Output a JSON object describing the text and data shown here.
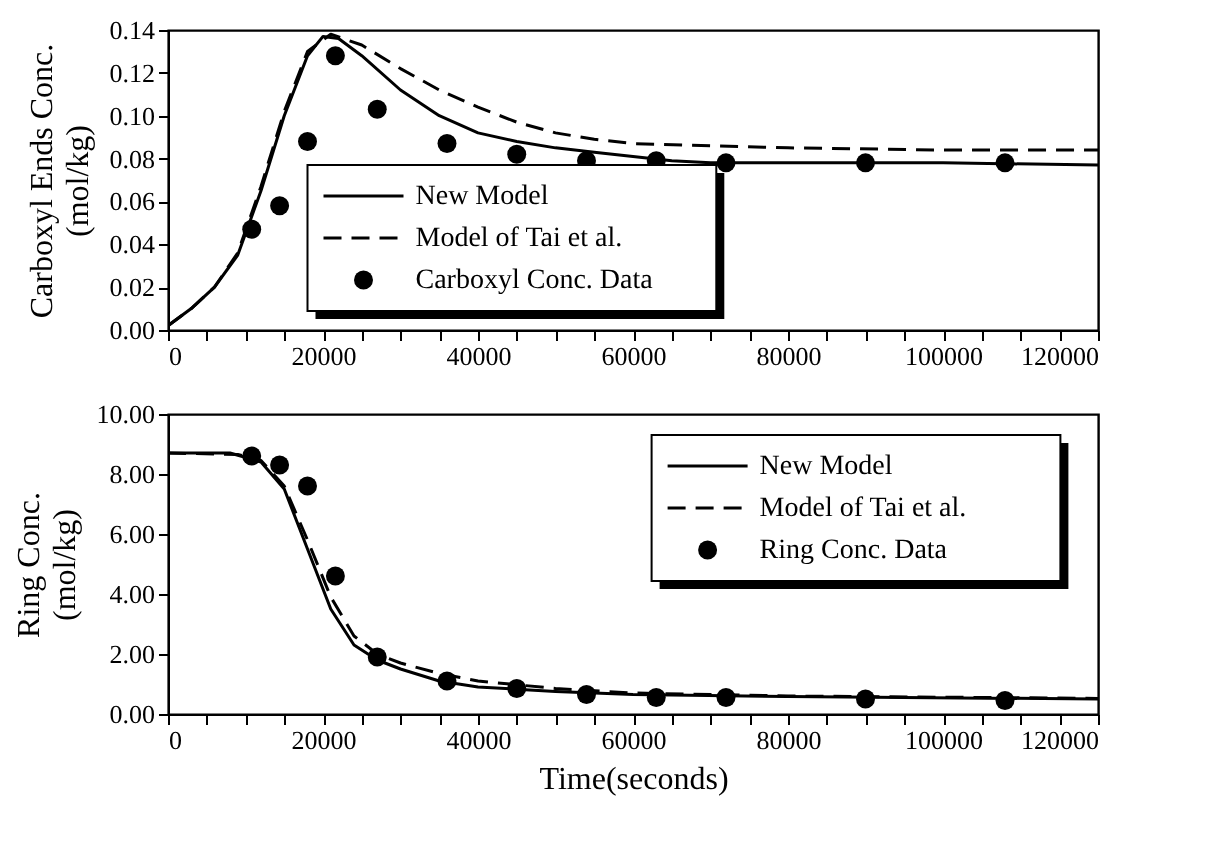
{
  "chart_data": [
    {
      "type": "line",
      "ylabel": "Carboxyl Ends Conc.\n(mol/kg)",
      "xlim": [
        0,
        120000
      ],
      "ylim": [
        0,
        0.14
      ],
      "xticks": [
        0,
        {
          "value": 5000,
          "label": null
        },
        {
          "value": 10000,
          "label": null
        },
        {
          "value": 15000,
          "label": null
        },
        20000,
        {
          "value": 25000,
          "label": null
        },
        {
          "value": 30000,
          "label": null
        },
        {
          "value": 35000,
          "label": null
        },
        40000,
        {
          "value": 45000,
          "label": null
        },
        {
          "value": 50000,
          "label": null
        },
        {
          "value": 55000,
          "label": null
        },
        60000,
        {
          "value": 65000,
          "label": null
        },
        {
          "value": 70000,
          "label": null
        },
        {
          "value": 75000,
          "label": null
        },
        80000,
        {
          "value": 85000,
          "label": null
        },
        {
          "value": 90000,
          "label": null
        },
        {
          "value": 95000,
          "label": null
        },
        100000,
        {
          "value": 105000,
          "label": null
        },
        {
          "value": 110000,
          "label": null
        },
        {
          "value": 115000,
          "label": null
        },
        120000
      ],
      "yticks": [
        {
          "value": 0,
          "label": "0.00"
        },
        {
          "value": 0.02,
          "label": "0.02"
        },
        {
          "value": 0.04,
          "label": "0.04"
        },
        {
          "value": 0.06,
          "label": "0.06"
        },
        {
          "value": 0.08,
          "label": "0.08"
        },
        {
          "value": 0.1,
          "label": "0.10"
        },
        {
          "value": 0.12,
          "label": "0.12"
        },
        {
          "value": 0.14,
          "label": "0.14"
        }
      ],
      "grid": false,
      "legend": "bottom",
      "series": [
        {
          "name": "New Model",
          "line_style": "solid",
          "color": "#000000",
          "x": [
            0,
            3000,
            6000,
            9000,
            12000,
            15000,
            18000,
            20000,
            22000,
            25000,
            30000,
            35000,
            40000,
            45000,
            50000,
            55000,
            60000,
            65000,
            70000,
            80000,
            100000,
            120000
          ],
          "values": [
            0.002,
            0.01,
            0.02,
            0.035,
            0.065,
            0.1,
            0.128,
            0.137,
            0.136,
            0.128,
            0.112,
            0.1,
            0.092,
            0.088,
            0.085,
            0.083,
            0.081,
            0.079,
            0.078,
            0.078,
            0.078,
            0.077
          ]
        },
        {
          "name": "Model of Tai et al.",
          "line_style": "dashed",
          "color": "#000000",
          "x": [
            0,
            3000,
            6000,
            9000,
            12000,
            15000,
            18000,
            21000,
            25000,
            30000,
            35000,
            40000,
            45000,
            50000,
            55000,
            60000,
            70000,
            80000,
            100000,
            120000
          ],
          "values": [
            0.002,
            0.01,
            0.02,
            0.036,
            0.067,
            0.102,
            0.13,
            0.138,
            0.133,
            0.122,
            0.112,
            0.104,
            0.097,
            0.092,
            0.089,
            0.087,
            0.086,
            0.085,
            0.084,
            0.084
          ]
        },
        {
          "name": "Carboxyl Conc. Data",
          "type": "scatter",
          "marker": "circle",
          "color": "#000000",
          "x": [
            10800,
            14400,
            18000,
            21600,
            27000,
            36000,
            45000,
            54000,
            63000,
            72000,
            90000,
            108000
          ],
          "values": [
            0.047,
            0.058,
            0.088,
            0.128,
            0.103,
            0.087,
            0.082,
            0.079,
            0.079,
            0.078,
            0.078,
            0.078
          ]
        }
      ]
    },
    {
      "type": "line",
      "xlabel": "Time(seconds)",
      "ylabel": "Ring Conc.\n(mol/kg)",
      "xlim": [
        0,
        120000
      ],
      "ylim": [
        0,
        10
      ],
      "xticks": [
        0,
        {
          "value": 5000,
          "label": null
        },
        {
          "value": 10000,
          "label": null
        },
        {
          "value": 15000,
          "label": null
        },
        20000,
        {
          "value": 25000,
          "label": null
        },
        {
          "value": 30000,
          "label": null
        },
        {
          "value": 35000,
          "label": null
        },
        40000,
        {
          "value": 45000,
          "label": null
        },
        {
          "value": 50000,
          "label": null
        },
        {
          "value": 55000,
          "label": null
        },
        60000,
        {
          "value": 65000,
          "label": null
        },
        {
          "value": 70000,
          "label": null
        },
        {
          "value": 75000,
          "label": null
        },
        80000,
        {
          "value": 85000,
          "label": null
        },
        {
          "value": 90000,
          "label": null
        },
        {
          "value": 95000,
          "label": null
        },
        100000,
        {
          "value": 105000,
          "label": null
        },
        {
          "value": 110000,
          "label": null
        },
        {
          "value": 115000,
          "label": null
        },
        120000
      ],
      "yticks": [
        {
          "value": 0,
          "label": "0.00"
        },
        {
          "value": 2,
          "label": "2.00"
        },
        {
          "value": 4,
          "label": "4.00"
        },
        {
          "value": 6,
          "label": "6.00"
        },
        {
          "value": 8,
          "label": "8.00"
        },
        {
          "value": 10,
          "label": "10.00"
        }
      ],
      "grid": false,
      "legend": "top right",
      "series": [
        {
          "name": "New Model",
          "line_style": "solid",
          "color": "#000000",
          "x": [
            0,
            8000,
            12000,
            15000,
            18000,
            21000,
            24000,
            27000,
            30000,
            35000,
            40000,
            50000,
            60000,
            80000,
            120000
          ],
          "values": [
            8.7,
            8.7,
            8.4,
            7.5,
            5.5,
            3.5,
            2.3,
            1.8,
            1.5,
            1.1,
            0.9,
            0.75,
            0.65,
            0.58,
            0.5
          ]
        },
        {
          "name": "Model of Tai et al.",
          "line_style": "dashed",
          "color": "#000000",
          "x": [
            0,
            9000,
            12000,
            15000,
            18000,
            21000,
            24000,
            27000,
            30000,
            35000,
            40000,
            50000,
            60000,
            80000,
            120000
          ],
          "values": [
            8.7,
            8.65,
            8.45,
            7.6,
            5.8,
            3.9,
            2.6,
            2.0,
            1.7,
            1.35,
            1.1,
            0.85,
            0.7,
            0.6,
            0.52
          ]
        },
        {
          "name": "Ring Conc. Data",
          "type": "scatter",
          "marker": "circle",
          "color": "#000000",
          "x": [
            10800,
            14400,
            18000,
            21600,
            27000,
            36000,
            45000,
            54000,
            63000,
            72000,
            90000,
            108000
          ],
          "values": [
            8.6,
            8.3,
            7.6,
            4.6,
            1.9,
            1.1,
            0.85,
            0.65,
            0.55,
            0.55,
            0.5,
            0.45
          ]
        }
      ]
    }
  ]
}
